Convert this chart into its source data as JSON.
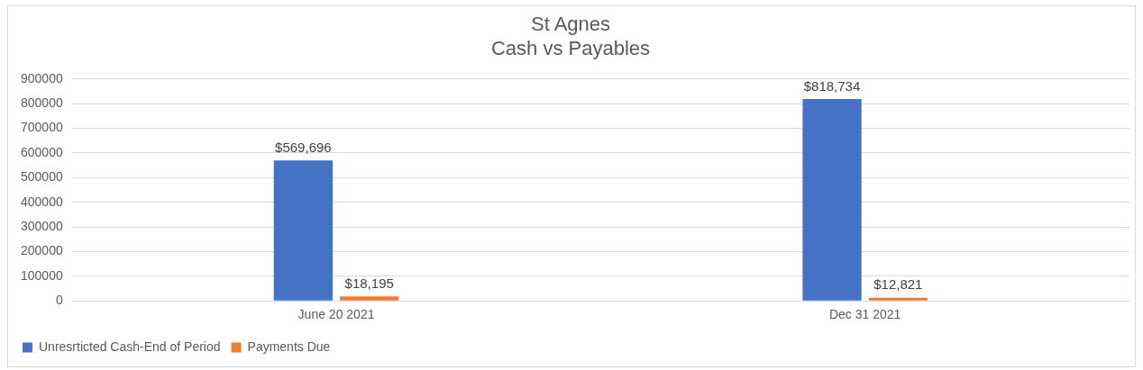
{
  "chart_data": {
    "type": "bar",
    "title": [
      "St Agnes",
      "Cash vs Payables"
    ],
    "categories": [
      "June 20 2021",
      "Dec 31 2021"
    ],
    "series": [
      {
        "name": "Unresrticted Cash-End of Period",
        "color": "#4472c4",
        "values": [
          569696,
          818734
        ],
        "value_labels": [
          "$569,696",
          "$818,734"
        ]
      },
      {
        "name": "Payments Due",
        "color": "#ed7d31",
        "values": [
          18195,
          12821
        ],
        "value_labels": [
          "$18,195",
          "$12,821"
        ]
      }
    ],
    "ylim": [
      0,
      900000
    ],
    "yticks": [
      0,
      100000,
      200000,
      300000,
      400000,
      500000,
      600000,
      700000,
      800000,
      900000
    ],
    "grid": "y",
    "legend": "bottom left"
  }
}
